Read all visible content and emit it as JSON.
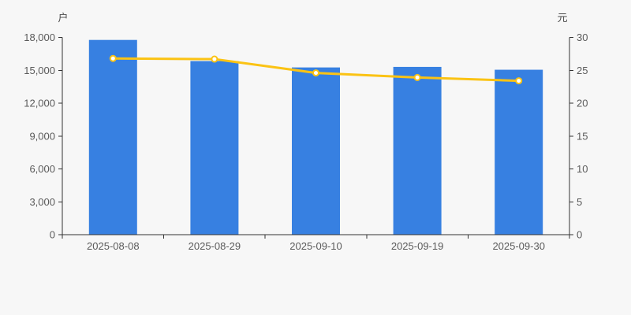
{
  "page": {
    "background_color": "#f7f7f7"
  },
  "chart_data": {
    "type": "bar",
    "title": "",
    "categories": [
      "2025-08-08",
      "2025-08-29",
      "2025-09-10",
      "2025-09-19",
      "2025-09-30"
    ],
    "series": [
      {
        "name": "户",
        "type": "bar",
        "axis": "left",
        "color": "#3780e1",
        "values": [
          17770,
          15840,
          15260,
          15310,
          15050
        ]
      },
      {
        "name": "元",
        "type": "line",
        "axis": "right",
        "color": "#fbc314",
        "marker_fill": "#ffffff",
        "values": [
          26.8,
          26.7,
          24.6,
          23.9,
          23.4
        ]
      }
    ],
    "left_axis": {
      "unit": "户",
      "min": 0,
      "max": 18000,
      "ticks": [
        "0",
        "3,000",
        "6,000",
        "9,000",
        "12,000",
        "15,000",
        "18,000"
      ]
    },
    "right_axis": {
      "unit": "元",
      "min": 0,
      "max": 30,
      "ticks": [
        "0",
        "5",
        "10",
        "15",
        "20",
        "25",
        "30"
      ]
    },
    "grid": false,
    "legend": "none",
    "axis_color": "#333333",
    "label_color": "#5a5a5a"
  }
}
